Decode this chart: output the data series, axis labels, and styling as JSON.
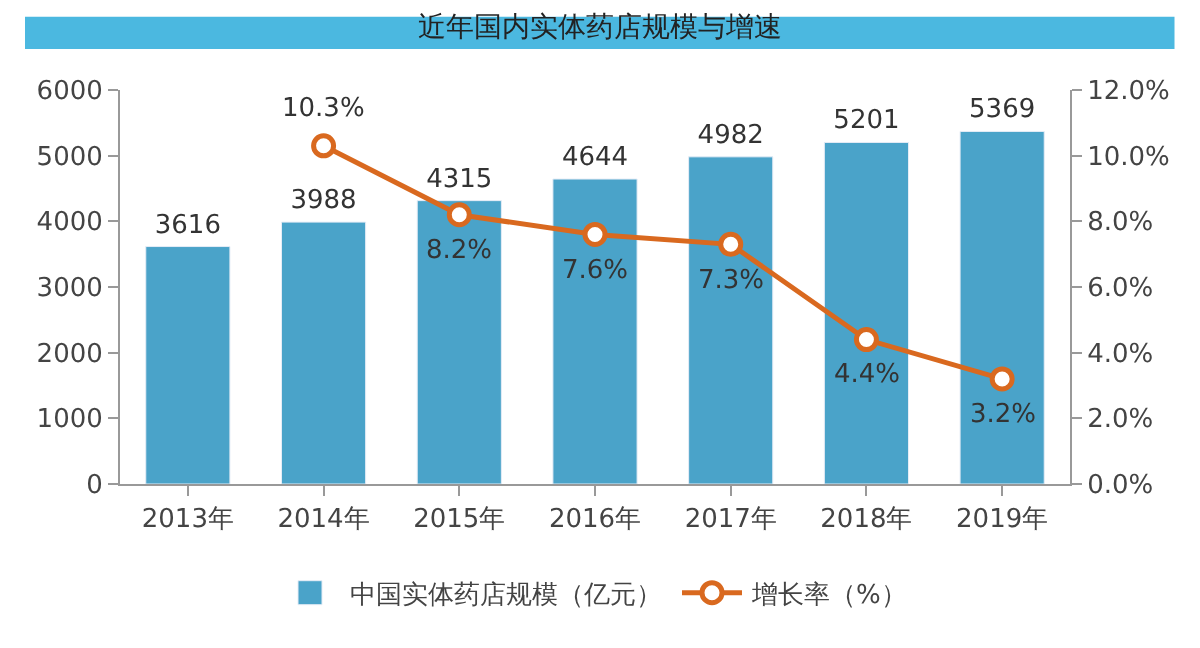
{
  "chart_data": {
    "type": "bar",
    "title": "近年国内实体药店规模与增速",
    "categories": [
      "2013年",
      "2014年",
      "2015年",
      "2016年",
      "2017年",
      "2018年",
      "2019年"
    ],
    "series": [
      {
        "name": "中国实体药店规模（亿元）",
        "color": "#4aa3c9",
        "values": [
          3616,
          3988,
          4315,
          4644,
          4982,
          5201,
          5369
        ],
        "value_labels": [
          "3616",
          "3988",
          "4315",
          "4644",
          "4982",
          "5201",
          "5369"
        ]
      },
      {
        "name": "增长率（%）",
        "type": "line",
        "axis": "y2",
        "color": "#d9691f",
        "marker": "circle",
        "values": [
          null,
          10.3,
          8.2,
          7.6,
          7.3,
          4.4,
          3.2
        ],
        "value_labels": [
          null,
          "10.3%",
          "8.2%",
          "7.6%",
          "7.3%",
          "4.4%",
          "3.2%"
        ]
      }
    ],
    "ylim": [
      0,
      6000
    ],
    "yticks": [
      0,
      1000,
      2000,
      3000,
      4000,
      5000,
      6000
    ],
    "y2lim": [
      0,
      12
    ],
    "y2ticks": [
      {
        "value": 0,
        "label": "0.0%"
      },
      {
        "value": 2,
        "label": "2.0%"
      },
      {
        "value": 4,
        "label": "4.0%"
      },
      {
        "value": 6,
        "label": "6.0%"
      },
      {
        "value": 8,
        "label": "8.0%"
      },
      {
        "value": 10,
        "label": "10.0%"
      },
      {
        "value": 12,
        "label": "12.0%"
      }
    ],
    "grid": false,
    "legend": "bottom"
  }
}
